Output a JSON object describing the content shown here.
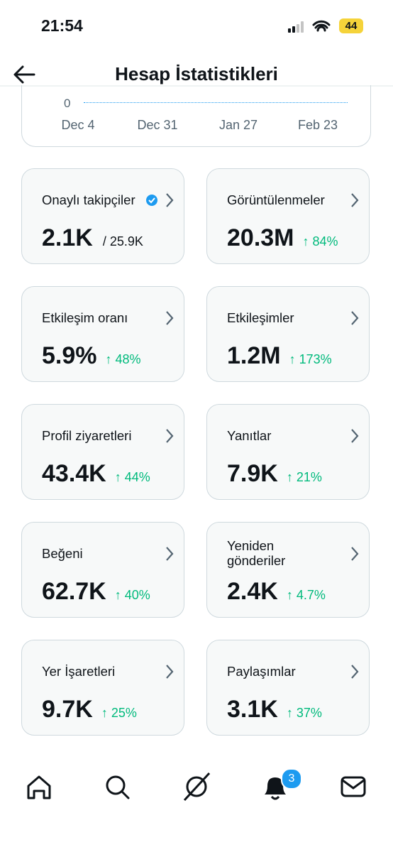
{
  "status": {
    "time": "21:54",
    "battery": "44"
  },
  "header": {
    "title": "Hesap İstatistikleri"
  },
  "chart": {
    "y_label": "0",
    "x_labels": [
      "Dec 4",
      "Dec 31",
      "Jan 27",
      "Feb 23"
    ]
  },
  "cards": [
    {
      "label": "Onaylı takipçiler",
      "value": "2.1K",
      "total": "/ 25.9K"
    },
    {
      "label": "Görüntülenmeler",
      "value": "20.3M",
      "change": "↑ 84%"
    },
    {
      "label": "Etkileşim oranı",
      "value": "5.9%",
      "change": "↑ 48%"
    },
    {
      "label": "Etkileşimler",
      "value": "1.2M",
      "change": "↑ 173%"
    },
    {
      "label": "Profil ziyaretleri",
      "value": "43.4K",
      "change": "↑ 44%"
    },
    {
      "label": "Yanıtlar",
      "value": "7.9K",
      "change": "↑ 21%"
    },
    {
      "label": "Beğeni",
      "value": "62.7K",
      "change": "↑ 40%"
    },
    {
      "label": "Yeniden gönderiler",
      "value": "2.4K",
      "change": "↑ 4.7%"
    },
    {
      "label": "Yer İşaretleri",
      "value": "9.7K",
      "change": "↑ 25%"
    },
    {
      "label": "Paylaşımlar",
      "value": "3.1K",
      "change": "↑ 37%"
    }
  ],
  "nav": {
    "notification_count": "3"
  }
}
